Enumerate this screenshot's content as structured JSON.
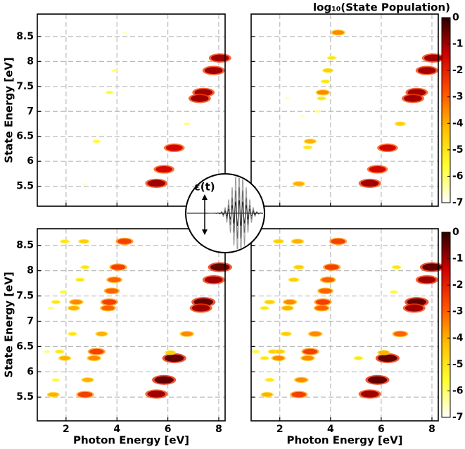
{
  "chart_data": [
    {
      "type": "scatter",
      "xlim": [
        0.87,
        8.25
      ],
      "ylim": [
        5.1,
        8.95
      ],
      "xticks": [
        2,
        4,
        6,
        8
      ],
      "yticks": [
        5.5,
        6,
        6.5,
        7,
        7.5,
        8,
        8.5
      ],
      "xticklabels": false,
      "yticklabels": true,
      "ylabel": "State Energy [eV]",
      "grid": true,
      "clim": [
        -7,
        0
      ],
      "colormap": [
        "#ffffff",
        "#ffff30",
        "#ffc000",
        "#ff5000",
        "#d00000",
        "#2a0000"
      ],
      "x": [
        8.05,
        7.8,
        7.4,
        7.25,
        6.25,
        5.85,
        5.55,
        4.3,
        3.7,
        3.2,
        3.9,
        6.75,
        2.75
      ],
      "y": [
        8.07,
        7.82,
        7.38,
        7.26,
        6.27,
        5.84,
        5.56,
        8.58,
        7.38,
        6.4,
        7.82,
        6.75,
        5.54
      ],
      "values": [
        -1,
        -1,
        -1,
        -1,
        -1.5,
        -1.5,
        -1,
        -6.5,
        -5.5,
        -5.5,
        -6,
        -6,
        -6.5
      ]
    },
    {
      "type": "scatter",
      "xlim": [
        0.87,
        8.25
      ],
      "ylim": [
        5.1,
        8.95
      ],
      "xticks": [
        2,
        4,
        6,
        8
      ],
      "yticks": [
        5.5,
        6,
        6.5,
        7,
        7.5,
        8,
        8.5
      ],
      "xticklabels": false,
      "yticklabels": false,
      "grid": true,
      "clim": [
        -7,
        0
      ],
      "colormap": [
        "#ffffff",
        "#ffff30",
        "#ffc000",
        "#ff5000",
        "#d00000",
        "#2a0000"
      ],
      "colorbar": {
        "label": "log₁₀(State Population)",
        "ticks": [
          0,
          -1,
          -2,
          -3,
          -4,
          -5,
          -6,
          -7
        ]
      },
      "x": [
        8.05,
        7.8,
        7.4,
        7.25,
        6.25,
        5.85,
        5.55,
        4.3,
        4.05,
        3.9,
        3.8,
        3.7,
        3.65,
        3.2,
        3.1,
        2.75,
        6.75,
        3.5,
        2.3,
        2.9
      ],
      "y": [
        8.07,
        7.82,
        7.38,
        7.26,
        6.27,
        5.84,
        5.56,
        8.58,
        8.07,
        7.82,
        7.6,
        7.38,
        7.26,
        6.4,
        6.28,
        5.55,
        6.75,
        7.0,
        7.26,
        6.9
      ],
      "values": [
        -1,
        -1,
        -1,
        -1,
        -1.5,
        -1.5,
        -1,
        -3.5,
        -5,
        -4.5,
        -5,
        -3.5,
        -5,
        -4,
        -5,
        -4,
        -4.5,
        -6,
        -6.5,
        -6.5
      ]
    },
    {
      "type": "scatter",
      "xlim": [
        0.87,
        8.25
      ],
      "ylim": [
        5.03,
        8.83
      ],
      "xticks": [
        2,
        4,
        6,
        8
      ],
      "yticks": [
        5.5,
        6,
        6.5,
        7,
        7.5,
        8,
        8.5
      ],
      "xticklabels": true,
      "yticklabels": true,
      "xlabel": "Photon Energy [eV]",
      "ylabel": "State Energy [eV]",
      "grid": true,
      "clim": [
        -7,
        0
      ],
      "colormap": [
        "#ffffff",
        "#ffff30",
        "#ffc000",
        "#ff5000",
        "#d00000",
        "#2a0000"
      ],
      "x": [
        8.05,
        7.8,
        7.4,
        7.3,
        6.25,
        6.1,
        5.85,
        5.55,
        6.75,
        4.3,
        4.05,
        3.9,
        3.8,
        3.7,
        3.65,
        3.4,
        3.2,
        3.1,
        2.85,
        2.75,
        2.75,
        2.7,
        2.55,
        2.4,
        2.3,
        2.25,
        1.95,
        1.75,
        1.6,
        1.6,
        1.5,
        1.95,
        1.9,
        1.4,
        1.25
      ],
      "y": [
        8.07,
        7.82,
        7.38,
        7.26,
        6.27,
        6.38,
        5.84,
        5.56,
        6.75,
        8.58,
        8.07,
        7.82,
        7.6,
        7.38,
        7.26,
        6.75,
        6.4,
        6.27,
        5.84,
        5.55,
        8.07,
        8.58,
        7.82,
        7.38,
        7.26,
        6.75,
        6.27,
        6.4,
        7.38,
        5.84,
        5.55,
        8.58,
        7.58,
        7.26,
        6.4
      ],
      "values": [
        -0.5,
        -1,
        -0.5,
        -1,
        -0.5,
        -4.5,
        -0.5,
        -1,
        -3.5,
        -2.5,
        -2.5,
        -3,
        -3,
        -2.5,
        -3,
        -4,
        -2.5,
        -3.5,
        -4,
        -2.5,
        -5,
        -4.5,
        -5,
        -3.5,
        -4,
        -5,
        -4,
        -5,
        -5,
        -5.5,
        -4,
        -5,
        -5.5,
        -6,
        -6
      ]
    },
    {
      "type": "scatter",
      "xlim": [
        0.87,
        8.25
      ],
      "ylim": [
        5.03,
        8.83
      ],
      "xticks": [
        2,
        4,
        6,
        8
      ],
      "yticks": [
        5.5,
        6,
        6.5,
        7,
        7.5,
        8,
        8.5
      ],
      "xticklabels": true,
      "yticklabels": false,
      "xlabel": "Photon Energy [eV]",
      "grid": true,
      "clim": [
        -7,
        0
      ],
      "colormap": [
        "#ffffff",
        "#ffff30",
        "#ffc000",
        "#ff5000",
        "#d00000",
        "#2a0000"
      ],
      "colorbar": {
        "ticks": [
          0,
          -1,
          -2,
          -3,
          -4,
          -5,
          -6,
          -7
        ]
      },
      "x": [
        8.0,
        7.8,
        7.4,
        7.3,
        6.25,
        6.1,
        5.85,
        5.55,
        6.75,
        4.3,
        4.05,
        3.9,
        3.8,
        3.7,
        3.65,
        3.4,
        3.2,
        3.1,
        2.85,
        2.75,
        2.75,
        2.7,
        2.55,
        2.4,
        2.3,
        2.25,
        1.95,
        1.75,
        1.6,
        1.6,
        1.5,
        1.95,
        1.4,
        6.6,
        6.5,
        2.0,
        1.4,
        1.05,
        5.1
      ],
      "y": [
        8.07,
        7.82,
        7.38,
        7.26,
        6.27,
        6.38,
        5.84,
        5.56,
        6.75,
        8.58,
        8.07,
        7.82,
        7.6,
        7.38,
        7.26,
        6.75,
        6.4,
        6.27,
        5.84,
        5.55,
        8.07,
        8.58,
        7.82,
        7.38,
        7.26,
        6.75,
        6.27,
        6.4,
        7.38,
        5.84,
        5.55,
        8.58,
        7.26,
        8.07,
        7.58,
        6.4,
        6.27,
        6.4,
        6.27
      ],
      "values": [
        -0.5,
        -1,
        -0.5,
        -1,
        -0.5,
        -4,
        -0.5,
        -1,
        -3,
        -2.5,
        -2.5,
        -3,
        -3,
        -2.5,
        -3,
        -3.5,
        -2.5,
        -3.5,
        -3.5,
        -2.5,
        -4.5,
        -4,
        -4.5,
        -3.5,
        -4,
        -4.5,
        -3.5,
        -4.5,
        -4.5,
        -5,
        -4,
        -4.5,
        -5,
        -5,
        -5.5,
        -4.5,
        -5,
        -5.5,
        -5
      ]
    }
  ],
  "inset": {
    "label": "ε(t)"
  }
}
